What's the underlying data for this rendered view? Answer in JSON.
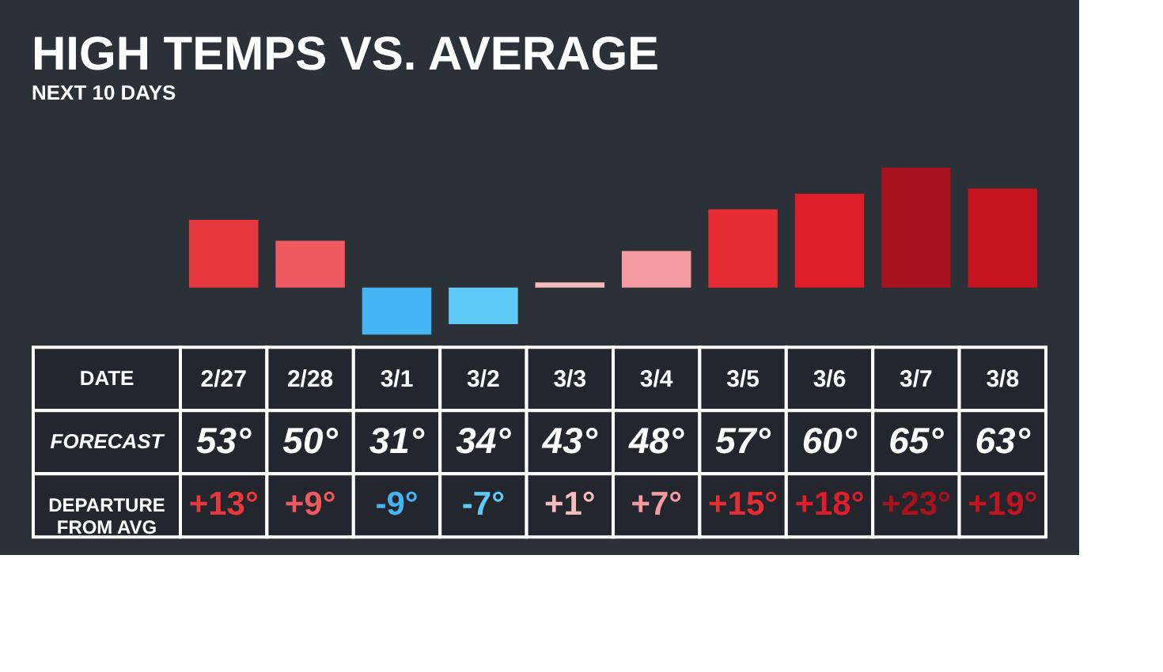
{
  "chart_data": {
    "type": "bar",
    "title": "HIGH TEMPS VS. AVERAGE",
    "subtitle": "NEXT 10 DAYS",
    "categories": [
      "2/27",
      "2/28",
      "3/1",
      "3/2",
      "3/3",
      "3/4",
      "3/5",
      "3/6",
      "3/7",
      "3/8"
    ],
    "values": [
      13,
      9,
      -9,
      -7,
      1,
      7,
      15,
      18,
      23,
      19
    ],
    "colors": [
      "#e8383f",
      "#ee5a5f",
      "#45b4f2",
      "#5fcaf6",
      "#f7bcc0",
      "#f59ca2",
      "#e62d34",
      "#de1f2b",
      "#a8121c",
      "#c5141f"
    ],
    "value_labels": [
      "+13°",
      "+9°",
      "-9°",
      "-7°",
      "+1°",
      "+7°",
      "+15°",
      "+18°",
      "+23°",
      "+19°"
    ],
    "annotations": [
      "DATE",
      "FORECAST",
      "DEPARTURE FROM AVG",
      "53°",
      "50°",
      "31°",
      "34°",
      "43°",
      "48°",
      "57°",
      "60°",
      "65°",
      "63°"
    ]
  }
}
